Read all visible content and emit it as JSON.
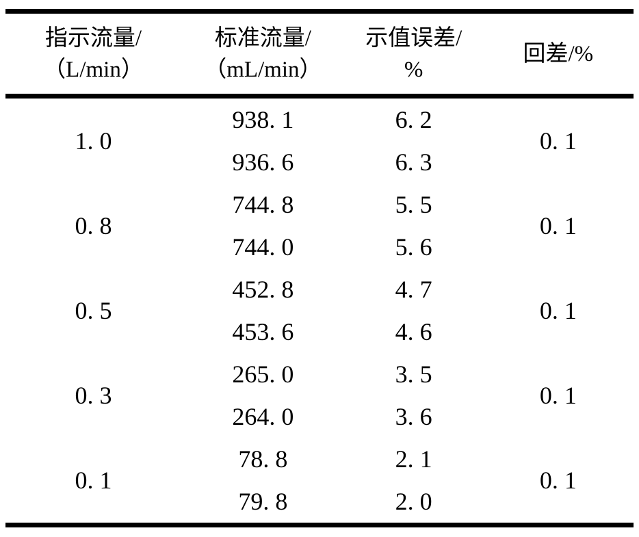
{
  "page": {
    "background_color": "#ffffff",
    "rule_color": "#000000",
    "text_color": "#000000"
  },
  "table": {
    "columns": [
      {
        "id": "indicated-flow",
        "line1": "指示流量/",
        "line2": "（L/min）"
      },
      {
        "id": "standard-flow",
        "line1": "标准流量/",
        "line2": "（mL/min）"
      },
      {
        "id": "indication-error",
        "line1": "示值误差/",
        "line2": "%"
      },
      {
        "id": "hysteresis",
        "line1": "回差/%"
      }
    ],
    "groups": [
      {
        "indicated": "1. 0",
        "std1": "938. 1",
        "err1": "6. 2",
        "std2": "936. 6",
        "err2": "6. 3",
        "hysteresis": "0. 1"
      },
      {
        "indicated": "0. 8",
        "std1": "744. 8",
        "err1": "5. 5",
        "std2": "744. 0",
        "err2": "5. 6",
        "hysteresis": "0. 1"
      },
      {
        "indicated": "0. 5",
        "std1": "452. 8",
        "err1": "4. 7",
        "std2": "453. 6",
        "err2": "4. 6",
        "hysteresis": "0. 1"
      },
      {
        "indicated": "0. 3",
        "std1": "265. 0",
        "err1": "3. 5",
        "std2": "264. 0",
        "err2": "3. 6",
        "hysteresis": "0. 1"
      },
      {
        "indicated": "0. 1",
        "std1": "78. 8",
        "err1": "2. 1",
        "std2": "79. 8",
        "err2": "2. 0",
        "hysteresis": "0. 1"
      }
    ]
  }
}
